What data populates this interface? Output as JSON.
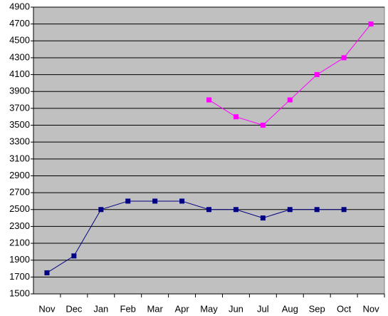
{
  "chart_data": {
    "type": "line",
    "categories": [
      "Nov",
      "Dec",
      "Jan",
      "Feb",
      "Mar",
      "Apr",
      "May",
      "Jun",
      "Jul",
      "Aug",
      "Sep",
      "Oct",
      "Nov"
    ],
    "series": [
      {
        "color": "#000080",
        "values": [
          1750,
          1950,
          2500,
          2600,
          2600,
          2600,
          2500,
          2500,
          2400,
          2500,
          2500,
          2500,
          null
        ]
      },
      {
        "color": "#ff00ff",
        "values": [
          null,
          null,
          null,
          null,
          null,
          null,
          3800,
          3600,
          3500,
          3800,
          4100,
          4300,
          4700
        ]
      }
    ],
    "ylim": [
      1500,
      4900
    ],
    "yticks": [
      1500,
      1700,
      1900,
      2100,
      2300,
      2500,
      2700,
      2900,
      3100,
      3300,
      3500,
      3700,
      3900,
      4100,
      4300,
      4500,
      4700,
      4900
    ],
    "grid": true
  }
}
